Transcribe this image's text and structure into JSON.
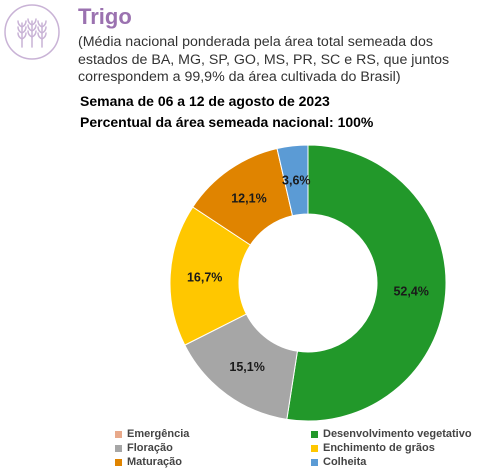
{
  "header": {
    "title": "Trigo",
    "subtitle": "(Média nacional ponderada pela área total semeada dos estados de BA, MG, SP, GO, MS, PR, SC e RS, que juntos correspondem a 99,9% da área cultivada do Brasil)",
    "week": "Semana de 06 a 12 de agosto de 2023",
    "area": "Percentual da área semeada nacional: 100%",
    "logo_icon": "wheat-icon",
    "logo_color": "#c9b3d6"
  },
  "chart_data": {
    "type": "pie",
    "donut": true,
    "categories": [
      "Emergência",
      "Desenvolvimento vegetativo",
      "Floração",
      "Enchimento de grãos",
      "Maturação",
      "Colheita"
    ],
    "values": [
      0,
      52.4,
      15.1,
      16.7,
      12.1,
      3.6
    ],
    "labels": [
      "",
      "52,4%",
      "15,1%",
      "16,7%",
      "12,1%",
      "3,6%"
    ],
    "colors": [
      "#e8a98a",
      "#22982a",
      "#a6a6a6",
      "#ffc700",
      "#e08400",
      "#5b9bd5"
    ],
    "legend": "bottom",
    "start": "top",
    "direction": "clockwise"
  },
  "legend": [
    {
      "label": "Emergência",
      "color": "#e8a98a"
    },
    {
      "label": "Desenvolvimento vegetativo",
      "color": "#22982a"
    },
    {
      "label": "Floração",
      "color": "#a6a6a6"
    },
    {
      "label": "Enchimento de grãos",
      "color": "#ffc700"
    },
    {
      "label": "Maturação",
      "color": "#e08400"
    },
    {
      "label": "Colheita",
      "color": "#5b9bd5"
    }
  ]
}
